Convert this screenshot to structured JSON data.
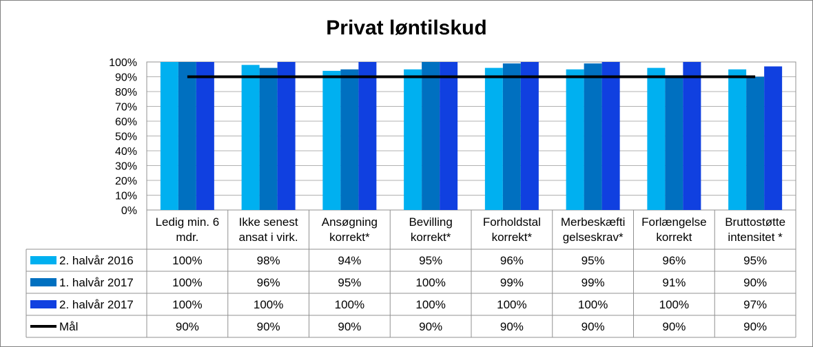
{
  "chart_data": {
    "type": "bar",
    "title": "Privat løntilskud",
    "categories": [
      [
        "Ledig min. 6",
        "mdr."
      ],
      [
        "Ikke senest",
        "ansat i virk."
      ],
      [
        "Ansøgning",
        "korrekt*"
      ],
      [
        "Bevilling",
        "korrekt*"
      ],
      [
        "Forholdstal",
        "korrekt*"
      ],
      [
        "Merbeskæfti",
        "gelseskrav*"
      ],
      [
        "Forlængelse",
        "korrekt"
      ],
      [
        "Bruttostøtte",
        "intensitet *"
      ]
    ],
    "ylim": [
      0,
      100
    ],
    "yticks": [
      "0%",
      "10%",
      "20%",
      "30%",
      "40%",
      "50%",
      "60%",
      "70%",
      "80%",
      "90%",
      "100%"
    ],
    "series": [
      {
        "name": "2. halvår 2016",
        "color": "#00B0F0",
        "values": [
          100,
          98,
          94,
          95,
          96,
          95,
          96,
          95
        ],
        "labels": [
          "100%",
          "98%",
          "94%",
          "95%",
          "96%",
          "95%",
          "96%",
          "95%"
        ]
      },
      {
        "name": "1. halvår 2017",
        "color": "#0070C0",
        "values": [
          100,
          96,
          95,
          100,
          99,
          99,
          91,
          90
        ],
        "labels": [
          "100%",
          "96%",
          "95%",
          "100%",
          "99%",
          "99%",
          "91%",
          "90%"
        ]
      },
      {
        "name": "2. halvår 2017",
        "color": "#1040E0",
        "values": [
          100,
          100,
          100,
          100,
          100,
          100,
          100,
          97
        ],
        "labels": [
          "100%",
          "100%",
          "100%",
          "100%",
          "100%",
          "100%",
          "100%",
          "97%"
        ]
      }
    ],
    "line_series": {
      "name": "Mål",
      "color": "#000000",
      "values": [
        90,
        90,
        90,
        90,
        90,
        90,
        90,
        90
      ],
      "labels": [
        "90%",
        "90%",
        "90%",
        "90%",
        "90%",
        "90%",
        "90%",
        "90%"
      ]
    },
    "grid": true,
    "legend": "data-table"
  }
}
